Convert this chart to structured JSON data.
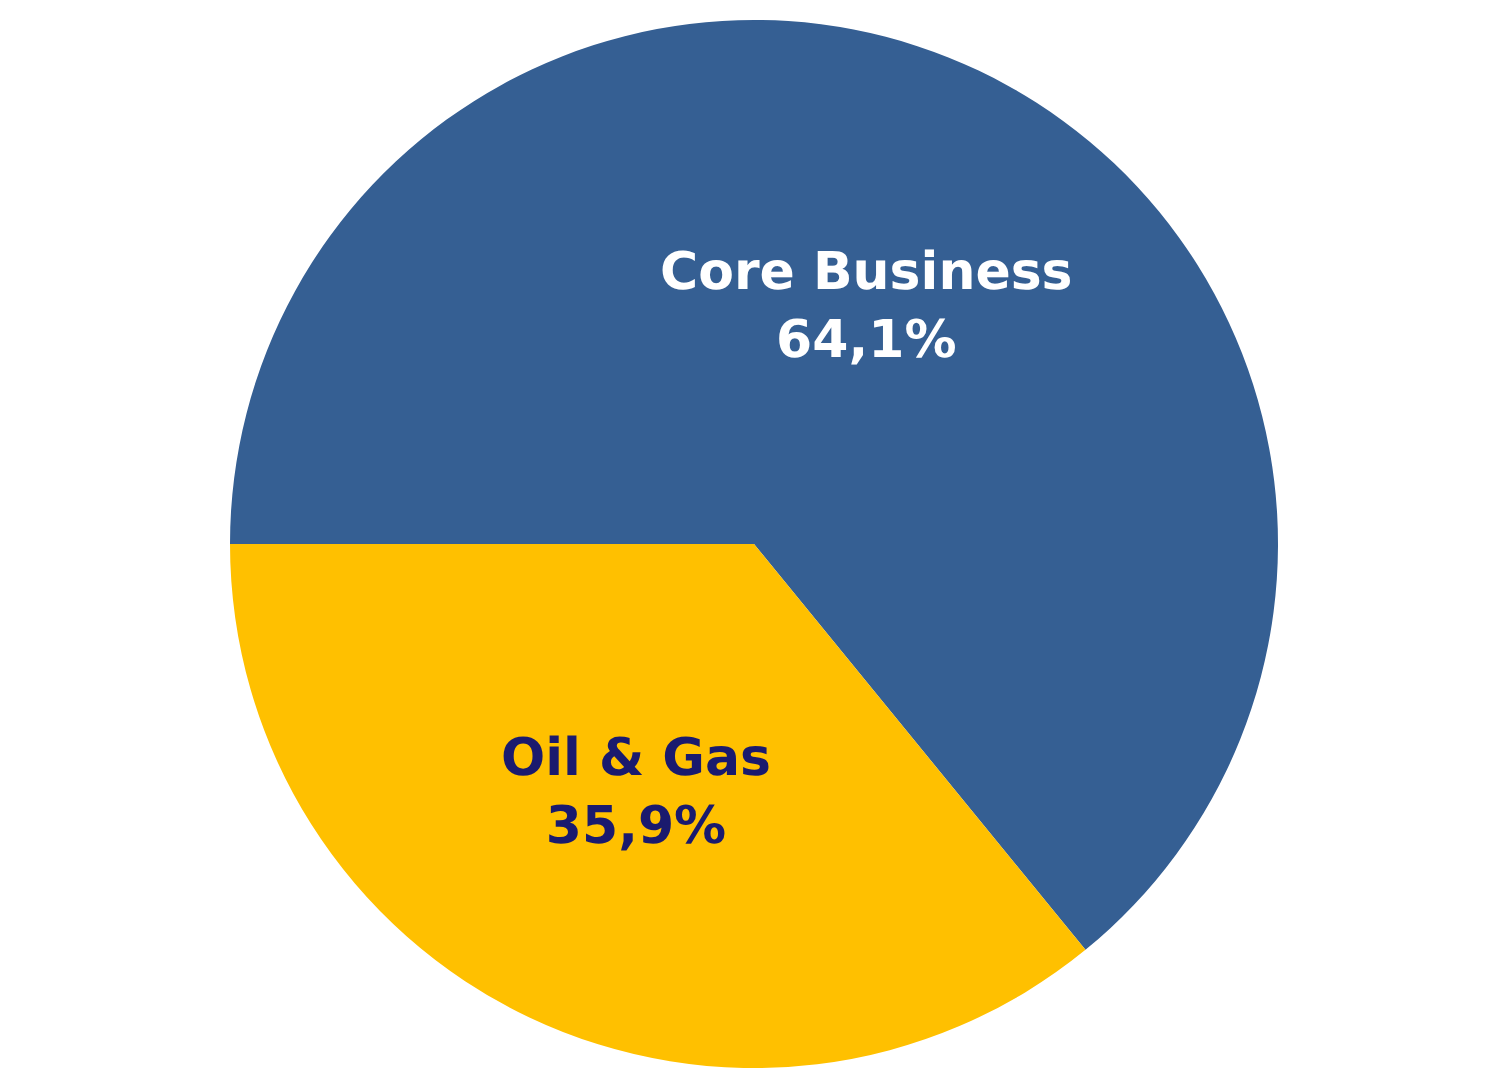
{
  "chart_data": {
    "type": "pie",
    "categories": [
      "Core Business",
      "Oil & Gas"
    ],
    "values": [
      64.1,
      35.9
    ],
    "value_labels": [
      "64,1%",
      "35,9%"
    ],
    "colors": [
      "#355f93",
      "#ffc000"
    ],
    "legend": false
  }
}
